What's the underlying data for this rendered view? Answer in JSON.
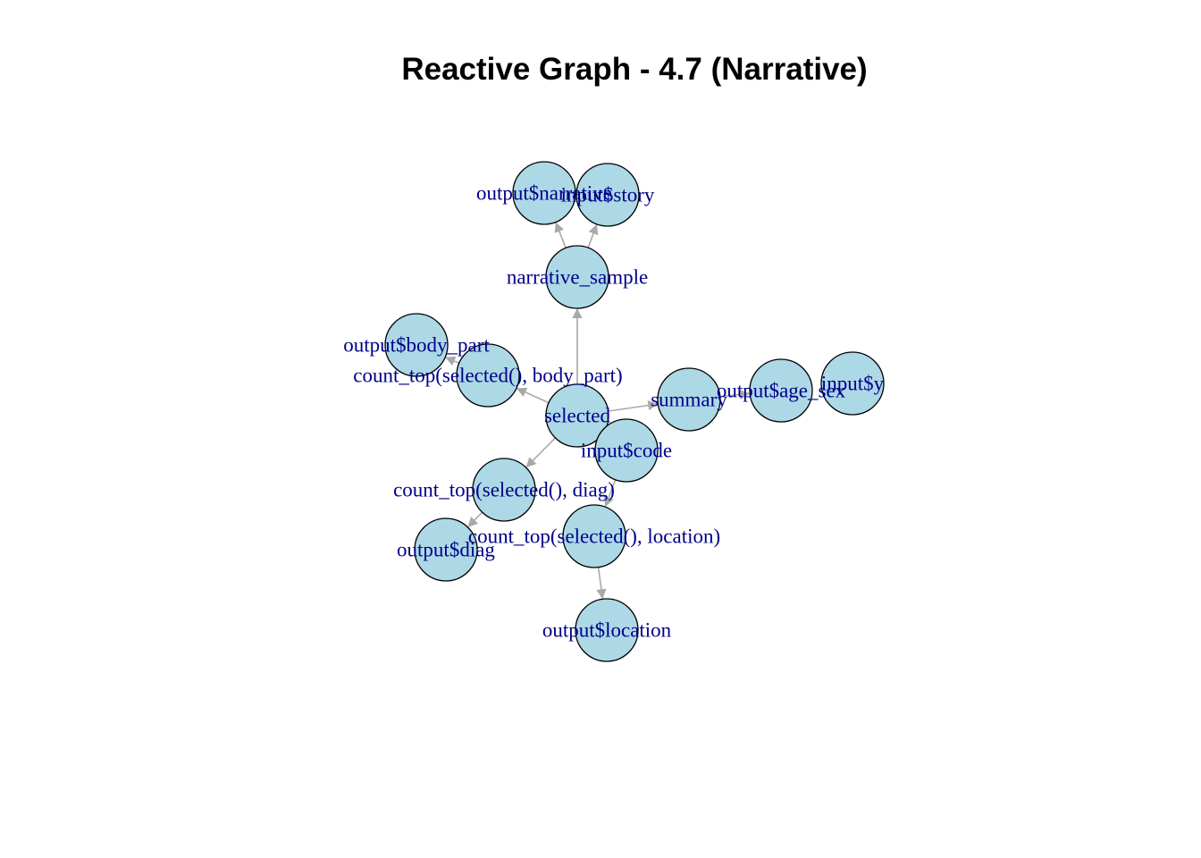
{
  "title": "Reactive Graph - 4.7 (Narrative)",
  "colors": {
    "node_fill": "#ADD8E6",
    "node_stroke": "#000000",
    "edge": "#A9A9A9",
    "label": "#00008B"
  },
  "nodes": [
    {
      "id": "output_narrative",
      "label": "output$narrative"
    },
    {
      "id": "input_story",
      "label": "input$story"
    },
    {
      "id": "narrative_sample",
      "label": "narrative_sample"
    },
    {
      "id": "output_body_part",
      "label": "output$body_part"
    },
    {
      "id": "count_body_part",
      "label": "count_top(selected(), body_part)"
    },
    {
      "id": "selected",
      "label": "selected"
    },
    {
      "id": "summary",
      "label": "summary"
    },
    {
      "id": "output_age_sex",
      "label": "output$age_sex"
    },
    {
      "id": "input_y",
      "label": "input$y"
    },
    {
      "id": "input_code",
      "label": "input$code"
    },
    {
      "id": "count_diag",
      "label": "count_top(selected(), diag)"
    },
    {
      "id": "output_diag",
      "label": "output$diag"
    },
    {
      "id": "count_location",
      "label": "count_top(selected(), location)"
    },
    {
      "id": "output_location",
      "label": "output$location"
    }
  ],
  "edges": [
    {
      "from": "narrative_sample",
      "to": "output_narrative"
    },
    {
      "from": "narrative_sample",
      "to": "input_story"
    },
    {
      "from": "selected",
      "to": "narrative_sample"
    },
    {
      "from": "count_body_part",
      "to": "output_body_part"
    },
    {
      "from": "selected",
      "to": "count_body_part"
    },
    {
      "from": "selected",
      "to": "summary"
    },
    {
      "from": "summary",
      "to": "output_age_sex"
    },
    {
      "from": "selected",
      "to": "count_diag"
    },
    {
      "from": "count_diag",
      "to": "output_diag"
    },
    {
      "from": "input_code",
      "to": "count_location"
    },
    {
      "from": "count_location",
      "to": "output_location"
    }
  ]
}
